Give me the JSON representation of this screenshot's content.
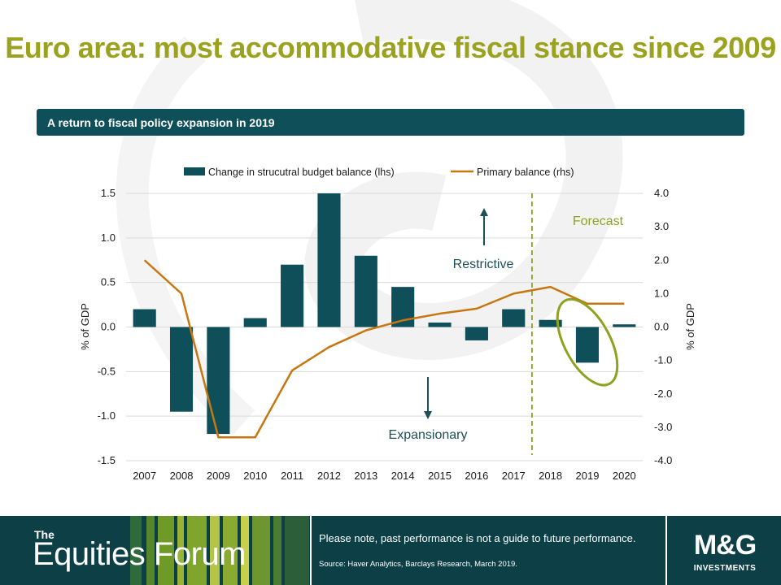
{
  "page": {
    "title": "Euro area: most accommodative fiscal stance since 2009",
    "subtitle_banner": "A return to fiscal  policy  expansion  in 2019"
  },
  "footer": {
    "brand_small": "The",
    "brand_big": "Equities Forum",
    "disclaimer": "Please note, past performance is not a guide to future performance.",
    "source": "Source: Haver Analytics, Barclays Research, March 2019.",
    "logo_main": "M&G",
    "logo_sub": "INVESTMENTS"
  },
  "colors": {
    "title": "#9aa21f",
    "banner": "#0e4f5a",
    "bar": "#0e4f5a",
    "line": "#c8760f",
    "forecast": "#8fa21f",
    "footer": "#0d3f47"
  },
  "chart_data": {
    "type": "bar+line",
    "categories": [
      "2007",
      "2008",
      "2009",
      "2010",
      "2011",
      "2012",
      "2013",
      "2014",
      "2015",
      "2016",
      "2017",
      "2018",
      "2019",
      "2020"
    ],
    "series": [
      {
        "name": "Change in strucutral budget balance (lhs)",
        "type": "bar",
        "axis": "left",
        "values": [
          0.2,
          -0.95,
          -1.2,
          0.1,
          0.7,
          1.5,
          0.8,
          0.45,
          0.05,
          -0.15,
          0.2,
          0.08,
          -0.4,
          0.03
        ]
      },
      {
        "name": "Primary balance (rhs)",
        "type": "line",
        "axis": "right",
        "values": [
          2.0,
          1.0,
          -3.3,
          -3.3,
          -1.3,
          -0.6,
          -0.1,
          0.2,
          0.4,
          0.55,
          1.0,
          1.2,
          0.7,
          0.7
        ]
      }
    ],
    "y_left": {
      "label": "% of GDP",
      "ylim": [
        -1.5,
        1.5
      ],
      "ticks": [
        "1.5",
        "1.0",
        "0.5",
        "0.0",
        "-0.5",
        "-1.0",
        "-1.5"
      ]
    },
    "y_right": {
      "label": "% of GDP",
      "ylim": [
        -4.0,
        4.0
      ],
      "ticks": [
        "4.0",
        "3.0",
        "2.0",
        "1.0",
        "0.0",
        "-1.0",
        "-2.0",
        "-3.0",
        "-4.0"
      ]
    },
    "legend_position": "top-center",
    "grid": "horizontal",
    "annotations": {
      "restrictive": "Restrictive",
      "expansionary": "Expansionary",
      "forecast": "Forecast"
    },
    "forecast_start_between": [
      "2017",
      "2018"
    ],
    "highlight_category": "2019"
  }
}
